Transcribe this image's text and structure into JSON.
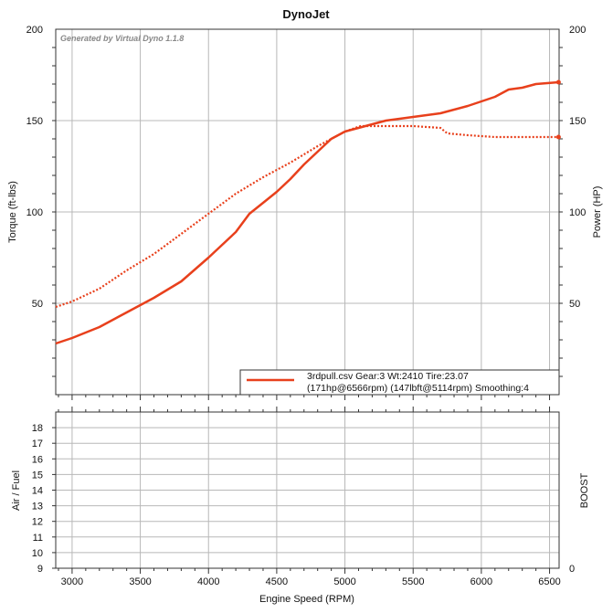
{
  "chart_data": [
    {
      "type": "line",
      "title": "DynoJet",
      "watermark": "Generated by Virtual Dyno 1.1.8",
      "xlabel": "Engine Speed (RPM)",
      "ylabel": "Torque (ft-lbs)",
      "y2label": "Power (HP)",
      "xlim": [
        2880,
        6570
      ],
      "ylim": [
        0,
        200
      ],
      "y2lim": [
        0,
        200
      ],
      "x_ticks": [
        3000,
        3500,
        4000,
        4500,
        5000,
        5500,
        6000,
        6500
      ],
      "y_ticks": [
        50,
        100,
        150,
        200
      ],
      "y2_ticks": [
        50,
        100,
        150,
        200
      ],
      "grid": true,
      "color": "#e8401c",
      "legend": {
        "position": "bottom-right",
        "line1": "3rdpull.csv Gear:3 Wt:2410 Tire:23.07",
        "line2": "(171hp@6566rpm) (147lbft@5114rpm) Smoothing:4"
      },
      "series": [
        {
          "kind": "power",
          "style": "solid",
          "x": [
            2880,
            3000,
            3200,
            3400,
            3600,
            3800,
            4000,
            4200,
            4300,
            4400,
            4500,
            4600,
            4700,
            4800,
            4900,
            5000,
            5100,
            5200,
            5300,
            5500,
            5700,
            5900,
            6100,
            6200,
            6300,
            6400,
            6566
          ],
          "values": [
            28,
            31,
            37,
            45,
            53,
            62,
            75,
            89,
            99,
            105,
            111,
            118,
            126,
            133,
            140,
            144,
            146,
            148,
            150,
            152,
            154,
            158,
            163,
            167,
            168,
            170,
            171
          ]
        },
        {
          "kind": "torque",
          "style": "dotted",
          "x": [
            2880,
            3000,
            3200,
            3400,
            3600,
            3800,
            4000,
            4200,
            4400,
            4600,
            4800,
            5000,
            5114,
            5300,
            5500,
            5700,
            5750,
            5900,
            6100,
            6300,
            6566
          ],
          "values": [
            48,
            51,
            58,
            68,
            77,
            88,
            99,
            110,
            119,
            127,
            136,
            144,
            147,
            147,
            147,
            146,
            143,
            142,
            141,
            141,
            141
          ]
        }
      ]
    },
    {
      "type": "line",
      "xlabel": "Engine Speed (RPM)",
      "ylabel": "Air / Fuel",
      "y2label": "BOOST",
      "ylim": [
        9,
        19
      ],
      "y_ticks": [
        9,
        10,
        11,
        12,
        13,
        14,
        15,
        16,
        17,
        18
      ],
      "y2_ticks": [
        0
      ],
      "grid": true,
      "series": []
    }
  ]
}
